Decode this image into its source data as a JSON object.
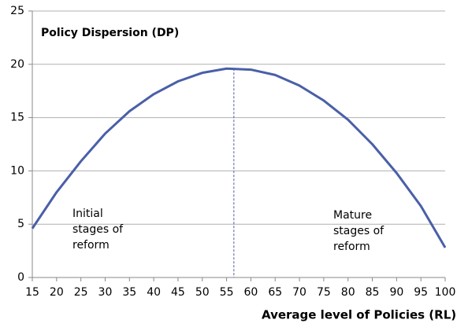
{
  "chart_data": {
    "type": "line",
    "title": "Policy Dispersion (DP)",
    "x_label": "Average level of Policies (RL)",
    "x": [
      15,
      20,
      25,
      30,
      35,
      40,
      45,
      50,
      55,
      60,
      65,
      70,
      75,
      80,
      85,
      90,
      95,
      100
    ],
    "series": [
      {
        "name": "Policy Dispersion",
        "color": "#4a5fa8",
        "values": [
          4.6,
          8.0,
          10.9,
          13.5,
          15.6,
          17.2,
          18.4,
          19.2,
          19.6,
          19.5,
          19.0,
          18.0,
          16.6,
          14.8,
          12.5,
          9.8,
          6.7,
          2.8
        ]
      }
    ],
    "peak_x": 56.5,
    "annotations": [
      [
        "Initial",
        "stages of",
        "reform"
      ],
      [
        "Mature",
        "stages of",
        "reform"
      ]
    ],
    "xlim": [
      15,
      100
    ],
    "xticks": [
      15,
      20,
      25,
      30,
      35,
      40,
      45,
      50,
      55,
      60,
      65,
      70,
      75,
      80,
      85,
      90,
      95,
      100
    ],
    "ylim": [
      0,
      25
    ],
    "yticks": [
      0,
      5,
      10,
      15,
      20,
      25
    ],
    "grid": true
  }
}
